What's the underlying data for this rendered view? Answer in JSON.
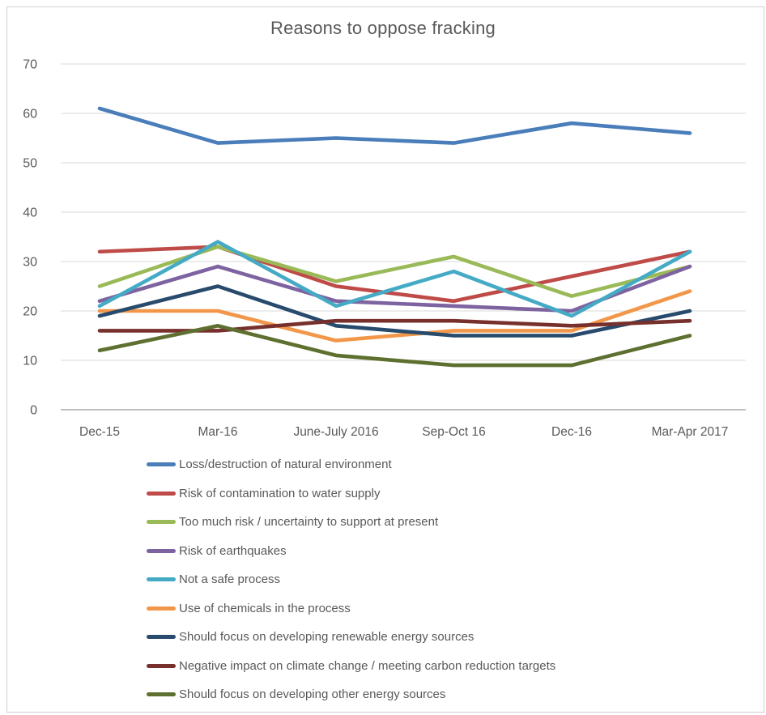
{
  "title": "Reasons to oppose fracking",
  "chart_data": {
    "type": "line",
    "title": "Reasons to oppose fracking",
    "categories": [
      "Dec-15",
      "Mar-16",
      "June-July 2016",
      "Sep-Oct 16",
      "Dec-16",
      "Mar-Apr 2017"
    ],
    "series": [
      {
        "name": "Loss/destruction of natural environment",
        "color": "#4A7EBB",
        "values": [
          61,
          54,
          55,
          54,
          58,
          56
        ]
      },
      {
        "name": "Risk of contamination to water supply",
        "color": "#BE4B48",
        "values": [
          32,
          33,
          25,
          22,
          27,
          32
        ]
      },
      {
        "name": "Too much risk / uncertainty to support at present",
        "color": "#9ABA58",
        "values": [
          25,
          33,
          26,
          31,
          23,
          29
        ]
      },
      {
        "name": "Risk of earthquakes",
        "color": "#7E63A1",
        "values": [
          22,
          29,
          22,
          21,
          20,
          29
        ]
      },
      {
        "name": "Not a safe process",
        "color": "#45AAC5",
        "values": [
          21,
          34,
          21,
          28,
          19,
          32
        ]
      },
      {
        "name": "Use of chemicals in the process",
        "color": "#F2974A",
        "values": [
          20,
          20,
          14,
          16,
          16,
          24
        ]
      },
      {
        "name": "Should focus on developing renewable energy sources",
        "color": "#274A6D",
        "values": [
          19,
          25,
          17,
          15,
          15,
          20
        ]
      },
      {
        "name": "Negative impact on climate change / meeting carbon reduction targets",
        "color": "#77302C",
        "values": [
          16,
          16,
          18,
          18,
          17,
          18
        ]
      },
      {
        "name": "Should focus on developing other energy sources",
        "color": "#5E7030",
        "values": [
          12,
          17,
          11,
          9,
          9,
          15
        ]
      }
    ],
    "ylim": [
      0,
      70
    ],
    "yticks": [
      0,
      10,
      20,
      30,
      40,
      50,
      60,
      70
    ],
    "grid": "horizontal-only",
    "gridline_color": "#D9D9D9",
    "axis_line_color": "#ABABAB",
    "legend_position": "bottom-left",
    "xlabel": "",
    "ylabel": ""
  }
}
